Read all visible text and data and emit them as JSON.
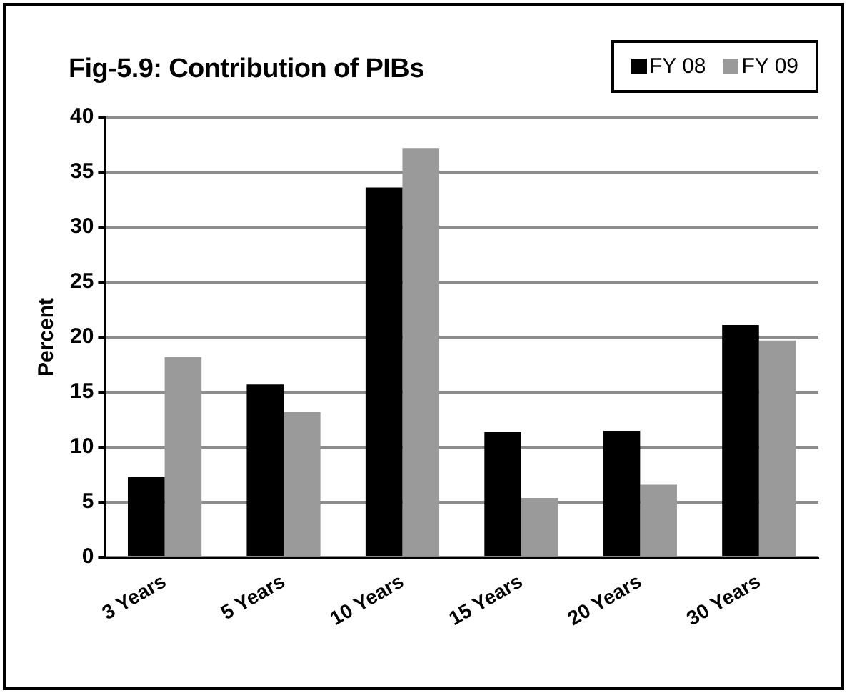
{
  "chart_data": {
    "type": "bar",
    "title": "Fig-5.9: Contribution of PIBs",
    "ylabel": "Percent",
    "categories": [
      "3 Years",
      "5 Years",
      "10 Years",
      "15 Years",
      "20 Years",
      "30 Years"
    ],
    "series": [
      {
        "name": "FY 08",
        "color": "#000000",
        "values": [
          7.3,
          15.7,
          33.6,
          11.4,
          11.5,
          21.1
        ]
      },
      {
        "name": "FY 09",
        "color": "#9a9a9a",
        "values": [
          18.2,
          13.2,
          37.2,
          5.4,
          6.6,
          19.7
        ]
      }
    ],
    "ylim": [
      0,
      40
    ],
    "yticks": [
      0,
      5,
      10,
      15,
      20,
      25,
      30,
      35,
      40
    ],
    "grid": "y",
    "legend": "top right"
  }
}
